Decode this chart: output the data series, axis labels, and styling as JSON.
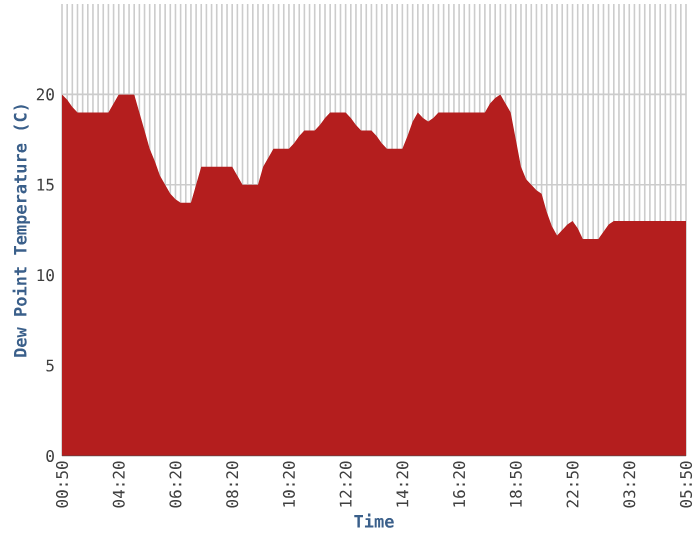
{
  "chart_data": {
    "type": "area",
    "xlabel": "Time",
    "ylabel": "Dew Point Temperature (C)",
    "categories": [
      "00:50",
      null,
      null,
      null,
      null,
      null,
      null,
      null,
      null,
      null,
      null,
      "04:20",
      null,
      null,
      null,
      null,
      null,
      null,
      null,
      null,
      null,
      null,
      "06:20",
      null,
      null,
      null,
      null,
      null,
      null,
      null,
      null,
      null,
      null,
      "08:20",
      null,
      null,
      null,
      null,
      null,
      null,
      null,
      null,
      null,
      null,
      "10:20",
      null,
      null,
      null,
      null,
      null,
      null,
      null,
      null,
      null,
      null,
      "12:20",
      null,
      null,
      null,
      null,
      null,
      null,
      null,
      null,
      null,
      null,
      "14:20",
      null,
      null,
      null,
      null,
      null,
      null,
      null,
      null,
      null,
      null,
      "16:20",
      null,
      null,
      null,
      null,
      null,
      null,
      null,
      null,
      null,
      null,
      "18:50",
      null,
      null,
      null,
      null,
      null,
      null,
      null,
      null,
      null,
      null,
      "22:50",
      null,
      null,
      null,
      null,
      null,
      null,
      null,
      null,
      null,
      null,
      "03:20",
      null,
      null,
      null,
      null,
      null,
      null,
      null,
      null,
      null,
      null,
      "05:50"
    ],
    "values": [
      20,
      19.7,
      19.3,
      19,
      19,
      19,
      19,
      19,
      19,
      19,
      19.5,
      20,
      20,
      20,
      20,
      19,
      18,
      17,
      16.3,
      15.5,
      15,
      14.5,
      14.2,
      14,
      14,
      14,
      15,
      16,
      16,
      16,
      16,
      16,
      16,
      16,
      15.5,
      15,
      15,
      15,
      15,
      16,
      16.5,
      17,
      17,
      17,
      17,
      17.3,
      17.7,
      18,
      18,
      18,
      18.3,
      18.7,
      19,
      19,
      19,
      19,
      18.7,
      18.3,
      18,
      18,
      18,
      17.7,
      17.3,
      17,
      17,
      17,
      17,
      17.7,
      18.5,
      19,
      18.7,
      18.5,
      18.7,
      19,
      19,
      19,
      19,
      19,
      19,
      19,
      19,
      19,
      19,
      19.5,
      19.8,
      20,
      19.5,
      19,
      17.5,
      16,
      15.3,
      15,
      14.7,
      14.5,
      13.5,
      12.7,
      12.2,
      12.5,
      12.8,
      13,
      12.6,
      12,
      12,
      12,
      12,
      12.4,
      12.8,
      13,
      13,
      13,
      13,
      13,
      13,
      13,
      13,
      13,
      13,
      13,
      13,
      13,
      13,
      13
    ],
    "color": "#b41e1e",
    "ylim": [
      0,
      25
    ],
    "yticks": [
      0,
      5,
      10,
      15,
      20
    ],
    "grid": true
  }
}
